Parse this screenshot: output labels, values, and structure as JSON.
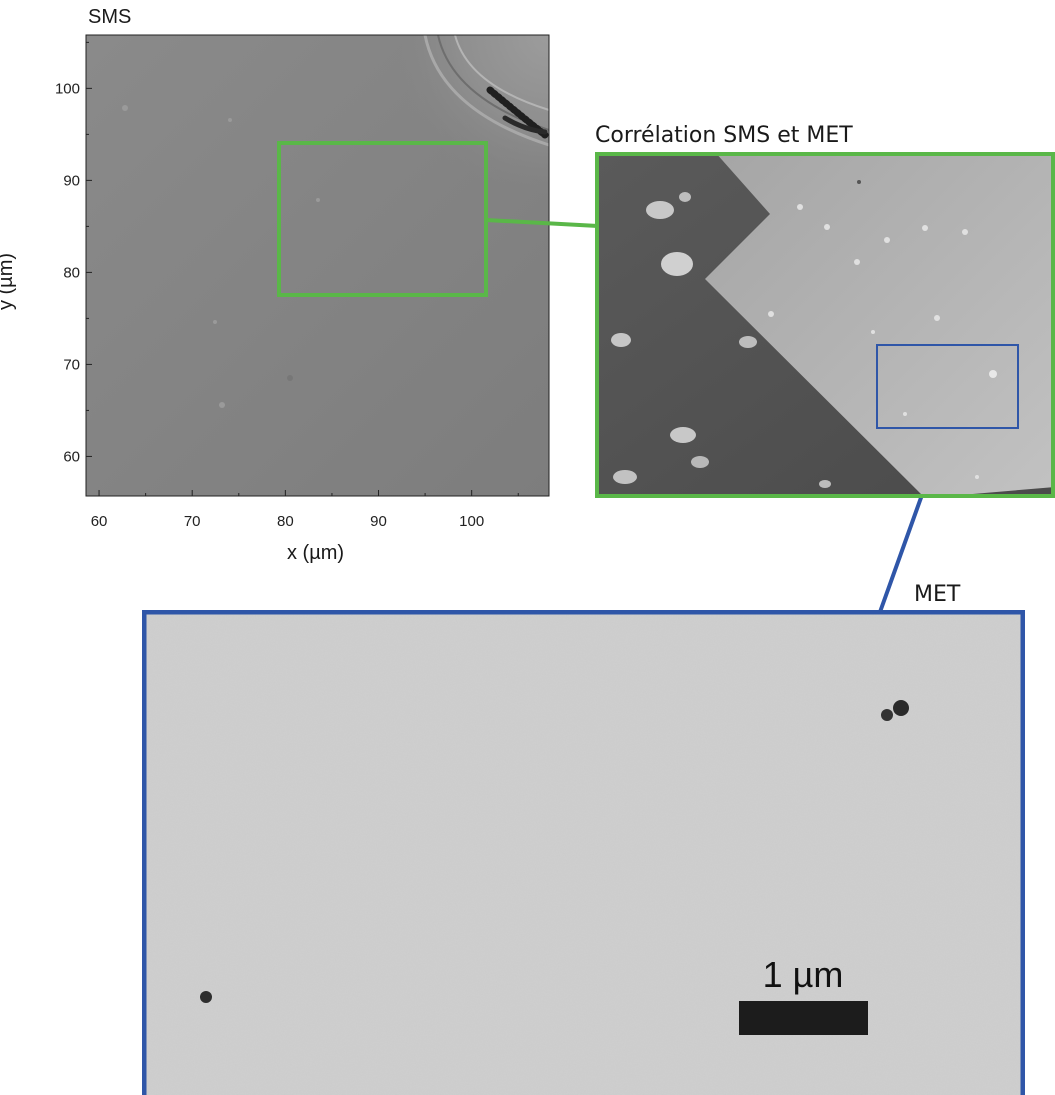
{
  "sms_panel": {
    "title": "SMS",
    "xlabel": "x (µm)",
    "ylabel": "y (µm)",
    "x_ticks": [
      "60",
      "70",
      "80",
      "90",
      "100"
    ],
    "y_ticks": [
      "60",
      "70",
      "80",
      "90",
      "100"
    ],
    "x_range": [
      58.6,
      108.3
    ],
    "y_range": [
      55.7,
      105.8
    ],
    "highlight_box_color": "#5ab748"
  },
  "correlation_panel": {
    "title": "Corrélation SMS et MET",
    "border_color": "#5ab748",
    "zoom_box_color": "#2f56a8"
  },
  "met_panel": {
    "title": "MET",
    "scale_bar_label": "1 µm",
    "border_color": "#2f56a8"
  },
  "colors": {
    "green": "#5ab748",
    "blue": "#2f56a8"
  }
}
